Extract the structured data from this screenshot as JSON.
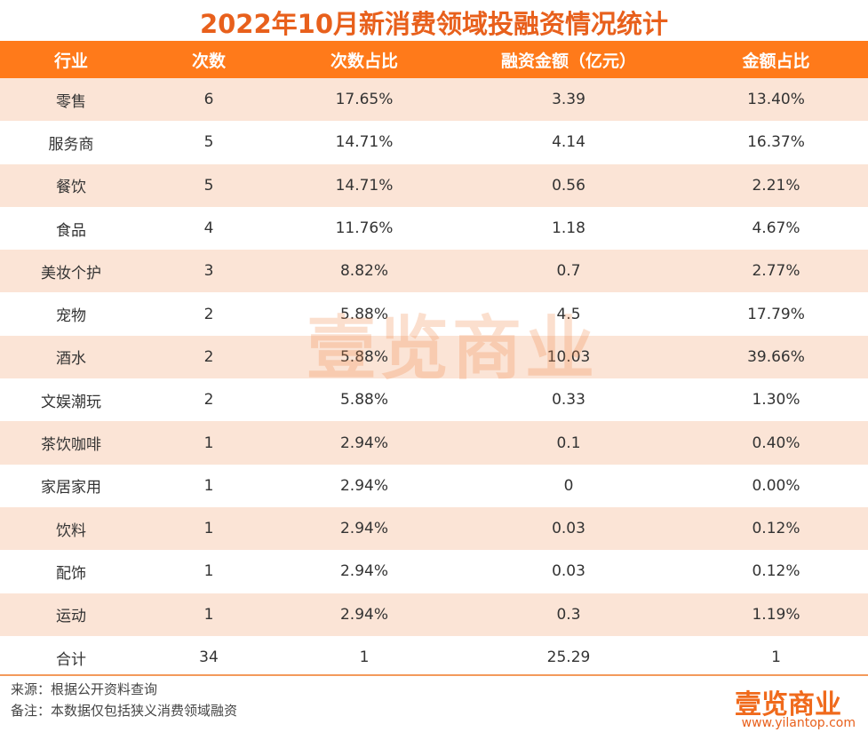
{
  "header": {
    "title": "2022年10月新消费领域投融资情况统计"
  },
  "table": {
    "columns": [
      "行业",
      "次数",
      "次数占比",
      "融资金额（亿元）",
      "金额占比"
    ],
    "rows": [
      [
        "零售",
        "6",
        "17.65%",
        "3.39",
        "13.40%"
      ],
      [
        "服务商",
        "5",
        "14.71%",
        "4.14",
        "16.37%"
      ],
      [
        "餐饮",
        "5",
        "14.71%",
        "0.56",
        "2.21%"
      ],
      [
        "食品",
        "4",
        "11.76%",
        "1.18",
        "4.67%"
      ],
      [
        "美妆个护",
        "3",
        "8.82%",
        "0.7",
        "2.77%"
      ],
      [
        "宠物",
        "2",
        "5.88%",
        "4.5",
        "17.79%"
      ],
      [
        "酒水",
        "2",
        "5.88%",
        "10.03",
        "39.66%"
      ],
      [
        "文娱潮玩",
        "2",
        "5.88%",
        "0.33",
        "1.30%"
      ],
      [
        "茶饮咖啡",
        "1",
        "2.94%",
        "0.1",
        "0.40%"
      ],
      [
        "家居家用",
        "1",
        "2.94%",
        "0",
        "0.00%"
      ],
      [
        "饮料",
        "1",
        "2.94%",
        "0.03",
        "0.12%"
      ],
      [
        "配饰",
        "1",
        "2.94%",
        "0.03",
        "0.12%"
      ],
      [
        "运动",
        "1",
        "2.94%",
        "0.3",
        "1.19%"
      ],
      [
        "合计",
        "34",
        "1",
        "25.29",
        "1"
      ]
    ]
  },
  "footer": {
    "source": "来源：根据公开资料查询",
    "note": "备注：本数据仅包括狭义消费领域融资"
  },
  "brand": {
    "name": "壹览商业",
    "url": "www.yilantop.com"
  }
}
